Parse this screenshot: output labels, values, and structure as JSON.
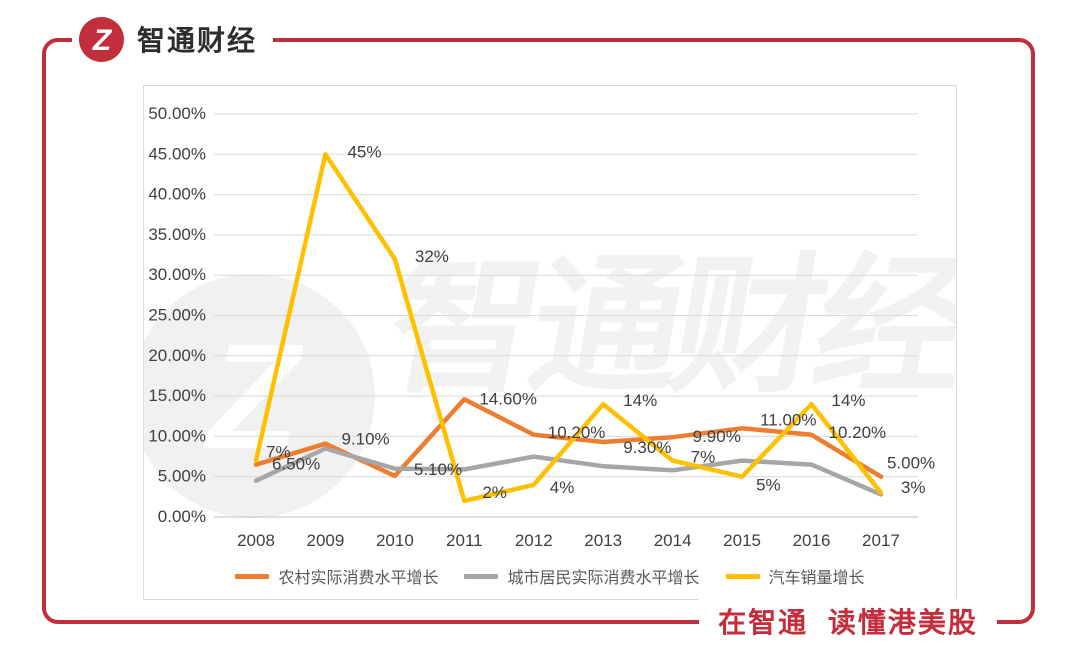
{
  "brand": {
    "logo_text": "智通财经",
    "logo_monogram": "Z",
    "tagline": "在智通 读懂港美股",
    "brand_red": "#C22E3C"
  },
  "chart_data": {
    "type": "line",
    "categories": [
      "2008",
      "2009",
      "2010",
      "2011",
      "2012",
      "2013",
      "2014",
      "2015",
      "2016",
      "2017"
    ],
    "series": [
      {
        "name": "农村实际消费水平增长",
        "color": "#ED7D31",
        "values": [
          6.5,
          9.1,
          5.1,
          14.6,
          10.2,
          9.3,
          9.9,
          11.0,
          10.2,
          5.0
        ],
        "labels": [
          "6.50%",
          "9.10%",
          "5.10%",
          "14.60%",
          "10.20%",
          "9.30%",
          "9.90%",
          "11.00%",
          "10.20%",
          "5.00%"
        ],
        "label_offsets": [
          [
            16,
            0
          ],
          [
            16,
            -4
          ],
          [
            19,
            -6
          ],
          [
            15,
            0
          ],
          [
            14,
            -2
          ],
          [
            20,
            6
          ],
          [
            20,
            0
          ],
          [
            18,
            -8
          ],
          [
            17,
            -2
          ],
          [
            6,
            -13
          ]
        ]
      },
      {
        "name": "城市居民实际消费水平增长",
        "color": "#A6A6A6",
        "values": [
          4.5,
          8.5,
          6.0,
          5.9,
          7.5,
          6.3,
          5.8,
          7.0,
          6.5,
          2.8
        ],
        "labels": [],
        "label_offsets": []
      },
      {
        "name": "汽车销量增长",
        "color": "#FFC000",
        "values": [
          7,
          45,
          32,
          2,
          4,
          14,
          7,
          5,
          14,
          3
        ],
        "labels": [
          "7%",
          "45%",
          "32%",
          "2%",
          "4%",
          "14%",
          "7%",
          "5%",
          "14%",
          "3%"
        ],
        "label_offsets": [
          [
            10,
            -8
          ],
          [
            22,
            -2
          ],
          [
            20,
            -2
          ],
          [
            18,
            -8
          ],
          [
            16,
            3
          ],
          [
            20,
            -3
          ],
          [
            18,
            -3
          ],
          [
            14,
            9
          ],
          [
            20,
            -3
          ],
          [
            20,
            -5
          ]
        ]
      }
    ],
    "title": "",
    "xlabel": "",
    "ylabel": "",
    "ylim": [
      0,
      50
    ],
    "ytick_step": 5,
    "ytick_suffix": "%",
    "ytick_decimals": 2,
    "grid": true,
    "legend_position": "bottom",
    "watermark_text": "智通财经",
    "label_color": "#404040",
    "grid_color": "#D9D9D9",
    "axis_line_color": "#BFBFBF"
  }
}
